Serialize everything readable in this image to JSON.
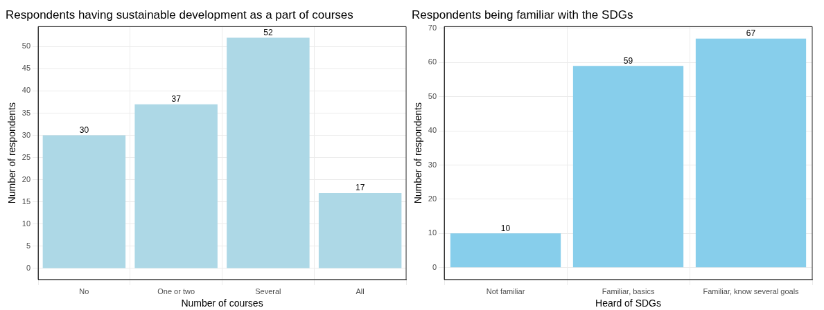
{
  "chart_data": [
    {
      "type": "bar",
      "title": "Respondents having sustainable development as a part of courses",
      "xlabel": "Number of courses",
      "ylabel": "Number of respondents",
      "categories": [
        "No",
        "One or two",
        "Several",
        "All"
      ],
      "values": [
        30,
        37,
        52,
        17
      ],
      "color": "#add8e6",
      "ylim": [
        -2.5,
        54.5
      ],
      "yticks": [
        0,
        5,
        10,
        15,
        20,
        25,
        30,
        35,
        40,
        45,
        50
      ],
      "grid": true,
      "data_labels": true,
      "legend": false
    },
    {
      "type": "bar",
      "title": "Respondents being familiar with the SDGs",
      "xlabel": "Heard of SDGs",
      "ylabel": "Number of respondents",
      "categories": [
        "Not familiar",
        "Familiar, basics",
        "Familiar, know several goals"
      ],
      "values": [
        10,
        59,
        67
      ],
      "color": "#87ceeb",
      "ylim": [
        -3.5,
        70.5
      ],
      "yticks": [
        0,
        10,
        20,
        30,
        40,
        50,
        60,
        70
      ],
      "grid": true,
      "data_labels": true,
      "legend": false
    }
  ]
}
